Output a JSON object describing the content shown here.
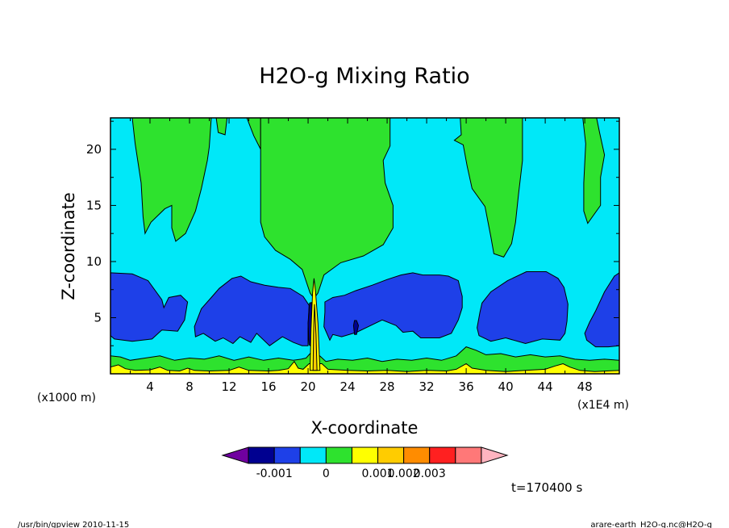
{
  "chart_data": {
    "type": "contour",
    "title": "H2O-g Mixing Ratio",
    "xlabel": "X-coordinate",
    "ylabel": "Z-coordinate",
    "x_unit": "(x1E4 m)",
    "y_unit": "(x1000 m)",
    "xlim": [
      0,
      51.5
    ],
    "ylim": [
      0,
      22.8
    ],
    "x_ticks": [
      4,
      8,
      12,
      16,
      20,
      24,
      28,
      32,
      36,
      40,
      44,
      48
    ],
    "y_ticks": [
      5,
      10,
      15,
      20
    ],
    "colors": {
      "background": "#00e8f8",
      "moist": "#2ee22e",
      "dry": "#1e40e8",
      "driest": "#000090",
      "surface": "#ffff00",
      "peak": "#ffcc00",
      "line": "#000000"
    },
    "regions": {
      "moist": [
        [
          [
            2.2,
            22.8
          ],
          [
            2.5,
            20.5
          ],
          [
            3.1,
            17
          ],
          [
            3.3,
            14
          ],
          [
            3.5,
            12.5
          ],
          [
            4.1,
            13.5
          ],
          [
            5.5,
            14.7
          ],
          [
            6.2,
            15
          ],
          [
            6.2,
            13
          ],
          [
            6.6,
            11.8
          ],
          [
            7.6,
            12.5
          ],
          [
            8.6,
            14.5
          ],
          [
            9.2,
            16.5
          ],
          [
            9.8,
            19
          ],
          [
            10,
            20.2
          ],
          [
            10.2,
            22.8
          ]
        ],
        [
          [
            10.7,
            22.8
          ],
          [
            10.9,
            21.5
          ],
          [
            11.6,
            21.3
          ],
          [
            11.8,
            22.8
          ]
        ],
        [
          [
            13.8,
            22.8
          ],
          [
            14.5,
            21.2
          ],
          [
            15.2,
            20
          ],
          [
            15.2,
            22.8
          ]
        ],
        [
          [
            15.2,
            22.8
          ],
          [
            15.2,
            20
          ],
          [
            15.2,
            13.5
          ],
          [
            15.6,
            12.2
          ],
          [
            16.7,
            11
          ],
          [
            18.2,
            10.2
          ],
          [
            19.4,
            9.3
          ],
          [
            20.2,
            7.2
          ],
          [
            20.6,
            6.7
          ],
          [
            21,
            7.2
          ],
          [
            21.6,
            8.8
          ],
          [
            23.3,
            9.9
          ],
          [
            25.6,
            10.5
          ],
          [
            27.6,
            11.5
          ],
          [
            28.6,
            13
          ],
          [
            28.6,
            15
          ],
          [
            27.8,
            17
          ],
          [
            27.6,
            19
          ],
          [
            28.3,
            20.3
          ],
          [
            28.3,
            22.8
          ]
        ],
        [
          [
            35.4,
            22.8
          ],
          [
            35.5,
            21.3
          ],
          [
            34.8,
            20.8
          ],
          [
            35.7,
            20.4
          ],
          [
            36.1,
            18.5
          ],
          [
            36.6,
            16.5
          ],
          [
            37.9,
            14.9
          ],
          [
            38.5,
            12.2
          ],
          [
            38.8,
            10.7
          ],
          [
            39.8,
            10.4
          ],
          [
            40.6,
            11.6
          ],
          [
            41,
            13.5
          ],
          [
            41.3,
            16
          ],
          [
            41.7,
            19
          ],
          [
            41.7,
            22.8
          ]
        ],
        [
          [
            47.8,
            22.8
          ],
          [
            48.1,
            20.5
          ],
          [
            47.9,
            17
          ],
          [
            47.9,
            14.5
          ],
          [
            48.3,
            13.4
          ],
          [
            49.6,
            15
          ],
          [
            49.6,
            17.5
          ],
          [
            50,
            19.5
          ],
          [
            49.5,
            21.5
          ],
          [
            49.2,
            22.8
          ]
        ]
      ],
      "dry": [
        [
          [
            0,
            9
          ],
          [
            2.2,
            8.9
          ],
          [
            3.8,
            8.3
          ],
          [
            5.2,
            6.6
          ],
          [
            5.4,
            5.9
          ],
          [
            5.9,
            6.8
          ],
          [
            7.1,
            7
          ],
          [
            7.8,
            6.4
          ],
          [
            7.5,
            4.8
          ],
          [
            6.8,
            3.8
          ],
          [
            5.2,
            3.9
          ],
          [
            4.2,
            3.1
          ],
          [
            2.2,
            2.9
          ],
          [
            0.4,
            3.1
          ],
          [
            0,
            3.4
          ]
        ],
        [
          [
            9.2,
            5.8
          ],
          [
            10.2,
            6.8
          ],
          [
            11,
            7.6
          ],
          [
            12.3,
            8.5
          ],
          [
            13.2,
            8.7
          ],
          [
            14.2,
            8.2
          ],
          [
            15.6,
            7.9
          ],
          [
            17,
            7.7
          ],
          [
            18.2,
            7.6
          ],
          [
            19.5,
            6.9
          ],
          [
            20.1,
            6.1
          ],
          [
            20,
            4
          ],
          [
            20,
            2.5
          ],
          [
            19.4,
            2.5
          ],
          [
            18.5,
            2.8
          ],
          [
            17.4,
            3.3
          ],
          [
            16.1,
            2.5
          ],
          [
            14.8,
            3.6
          ],
          [
            14.2,
            2.8
          ],
          [
            13.1,
            3.3
          ],
          [
            12.4,
            2.7
          ],
          [
            11.4,
            3.2
          ],
          [
            10.6,
            2.9
          ],
          [
            9.4,
            3.6
          ],
          [
            8.6,
            3.3
          ],
          [
            8.5,
            4.2
          ]
        ],
        [
          [
            21.7,
            6.4
          ],
          [
            22.5,
            6.8
          ],
          [
            23.7,
            7
          ],
          [
            24.8,
            7.4
          ],
          [
            26.5,
            7.9
          ],
          [
            28,
            8.4
          ],
          [
            29.4,
            8.8
          ],
          [
            30.6,
            9
          ],
          [
            31.6,
            8.8
          ],
          [
            33.3,
            8.8
          ],
          [
            34.2,
            8.7
          ],
          [
            35.2,
            8.3
          ],
          [
            35.6,
            6.9
          ],
          [
            35.6,
            5.9
          ],
          [
            35.2,
            4.8
          ],
          [
            34.5,
            3.6
          ],
          [
            33.3,
            3.2
          ],
          [
            31.4,
            3.2
          ],
          [
            30.6,
            3.8
          ],
          [
            29.6,
            3.7
          ],
          [
            28.9,
            4.3
          ],
          [
            27.5,
            4.8
          ],
          [
            26.1,
            4.2
          ],
          [
            24.9,
            3.7
          ],
          [
            23.4,
            3.3
          ],
          [
            22.5,
            3.5
          ],
          [
            22.2,
            3
          ],
          [
            21.6,
            4.2
          ],
          [
            21.7,
            5.5
          ]
        ],
        [
          [
            37.6,
            6.3
          ],
          [
            37.4,
            5.5
          ],
          [
            37.1,
            4.1
          ],
          [
            37.3,
            3.4
          ],
          [
            38.5,
            2.9
          ],
          [
            40,
            3.2
          ],
          [
            42,
            2.7
          ],
          [
            43.7,
            3.1
          ],
          [
            45.5,
            3
          ],
          [
            46,
            3.6
          ],
          [
            46.2,
            4.7
          ],
          [
            46.3,
            6.2
          ],
          [
            45.9,
            7.7
          ],
          [
            45.3,
            8.5
          ],
          [
            44.1,
            9.1
          ],
          [
            42.1,
            9.1
          ],
          [
            40.2,
            8.3
          ],
          [
            38.5,
            7.3
          ]
        ],
        [
          [
            48,
            3.6
          ],
          [
            48.2,
            3
          ],
          [
            49.1,
            2.4
          ],
          [
            50.4,
            2.4
          ],
          [
            51.5,
            2.5
          ],
          [
            51.5,
            9
          ],
          [
            51,
            8.7
          ],
          [
            50,
            7.3
          ],
          [
            49.1,
            5.6
          ],
          [
            48.5,
            4.6
          ]
        ]
      ],
      "driest": [
        [
          [
            20.15,
            6.3
          ],
          [
            20.35,
            6.35
          ],
          [
            20.6,
            3.2
          ],
          [
            20.35,
            2.4
          ],
          [
            20.1,
            2.6
          ],
          [
            20,
            4.5
          ]
        ],
        [
          [
            24.6,
            4.3
          ],
          [
            24.7,
            4.75
          ],
          [
            24.9,
            4.75
          ],
          [
            25.1,
            4.3
          ],
          [
            24.9,
            3.5
          ],
          [
            24.7,
            3.5
          ]
        ]
      ],
      "moist_surface_top": [
        [
          0,
          1.6
        ],
        [
          1,
          1.5
        ],
        [
          2,
          1.2
        ],
        [
          3.5,
          1.4
        ],
        [
          5,
          1.6
        ],
        [
          6.5,
          1.2
        ],
        [
          8,
          1.4
        ],
        [
          9.5,
          1.3
        ],
        [
          11,
          1.6
        ],
        [
          12.5,
          1.2
        ],
        [
          14,
          1.5
        ],
        [
          15.5,
          1.2
        ],
        [
          17,
          1.4
        ],
        [
          18.5,
          1.2
        ],
        [
          19.3,
          1.3
        ],
        [
          19.8,
          1.4
        ],
        [
          20.2,
          1.8
        ],
        [
          20.8,
          1.9
        ],
        [
          21.3,
          1.5
        ],
        [
          21.8,
          1.1
        ],
        [
          23,
          1.3
        ],
        [
          24.5,
          1.2
        ],
        [
          26,
          1.4
        ],
        [
          27.5,
          1.1
        ],
        [
          29,
          1.3
        ],
        [
          30.5,
          1.2
        ],
        [
          32,
          1.4
        ],
        [
          33.5,
          1.2
        ],
        [
          35,
          1.6
        ],
        [
          36,
          2.4
        ],
        [
          37,
          2.1
        ],
        [
          38,
          1.7
        ],
        [
          39.5,
          1.8
        ],
        [
          41,
          1.5
        ],
        [
          42.5,
          1.7
        ],
        [
          44,
          1.5
        ],
        [
          45.5,
          1.6
        ],
        [
          47,
          1.3
        ],
        [
          48.5,
          1.2
        ],
        [
          50,
          1.3
        ],
        [
          51.5,
          1.2
        ]
      ],
      "yellow_surface_top": [
        [
          0,
          0.6
        ],
        [
          0.8,
          0.8
        ],
        [
          1.5,
          0.45
        ],
        [
          2.5,
          0.3
        ],
        [
          4,
          0.35
        ],
        [
          5,
          0.6
        ],
        [
          5.8,
          0.3
        ],
        [
          7,
          0.25
        ],
        [
          7.8,
          0.5
        ],
        [
          8.5,
          0.3
        ],
        [
          10,
          0.25
        ],
        [
          12,
          0.3
        ],
        [
          13,
          0.6
        ],
        [
          14,
          0.3
        ],
        [
          16,
          0.25
        ],
        [
          17,
          0.3
        ],
        [
          18,
          0.45
        ],
        [
          18.6,
          1.1
        ],
        [
          19,
          0.5
        ],
        [
          19.5,
          0.4
        ],
        [
          20.1,
          0.9
        ],
        [
          21.4,
          0.9
        ],
        [
          22,
          0.4
        ],
        [
          24,
          0.3
        ],
        [
          26,
          0.25
        ],
        [
          28,
          0.3
        ],
        [
          30,
          0.2
        ],
        [
          32,
          0.3
        ],
        [
          34,
          0.25
        ],
        [
          35,
          0.4
        ],
        [
          36,
          0.9
        ],
        [
          36.6,
          0.5
        ],
        [
          38,
          0.3
        ],
        [
          40,
          0.2
        ],
        [
          42,
          0.3
        ],
        [
          44,
          0.4
        ],
        [
          45,
          0.7
        ],
        [
          45.8,
          0.9
        ],
        [
          46.5,
          0.6
        ],
        [
          47.5,
          0.3
        ],
        [
          49,
          0.2
        ],
        [
          51.5,
          0.3
        ]
      ],
      "plume": [
        [
          20.2,
          0.3
        ],
        [
          20.3,
          4
        ],
        [
          20.45,
          7.2
        ],
        [
          20.6,
          8.5
        ],
        [
          20.75,
          7.4
        ],
        [
          21,
          4.5
        ],
        [
          21.2,
          0.3
        ]
      ],
      "plume_core": [
        [
          20.5,
          0.3
        ],
        [
          20.55,
          3.5
        ],
        [
          20.65,
          6.2
        ],
        [
          20.8,
          3.5
        ],
        [
          20.9,
          0.3
        ]
      ]
    },
    "colorbar": {
      "colors": [
        "#7000a0",
        "#000090",
        "#1e40e8",
        "#00e8f8",
        "#2ee22e",
        "#ffff00",
        "#ffcc00",
        "#ff8c00",
        "#ff2020",
        "#ff7878",
        "#ffb4c0"
      ],
      "tick_labels": [
        "-0.001",
        "0",
        "0.001",
        "0.002",
        "0.003"
      ],
      "tick_boundaries": [
        2,
        4,
        6,
        7,
        8
      ]
    }
  },
  "annotation": {
    "time": "t=170400 s"
  },
  "footer": {
    "left": "/usr/bin/gpview  2010-11-15",
    "right": "arare-earth_H2O-g.nc@H2O-g"
  }
}
